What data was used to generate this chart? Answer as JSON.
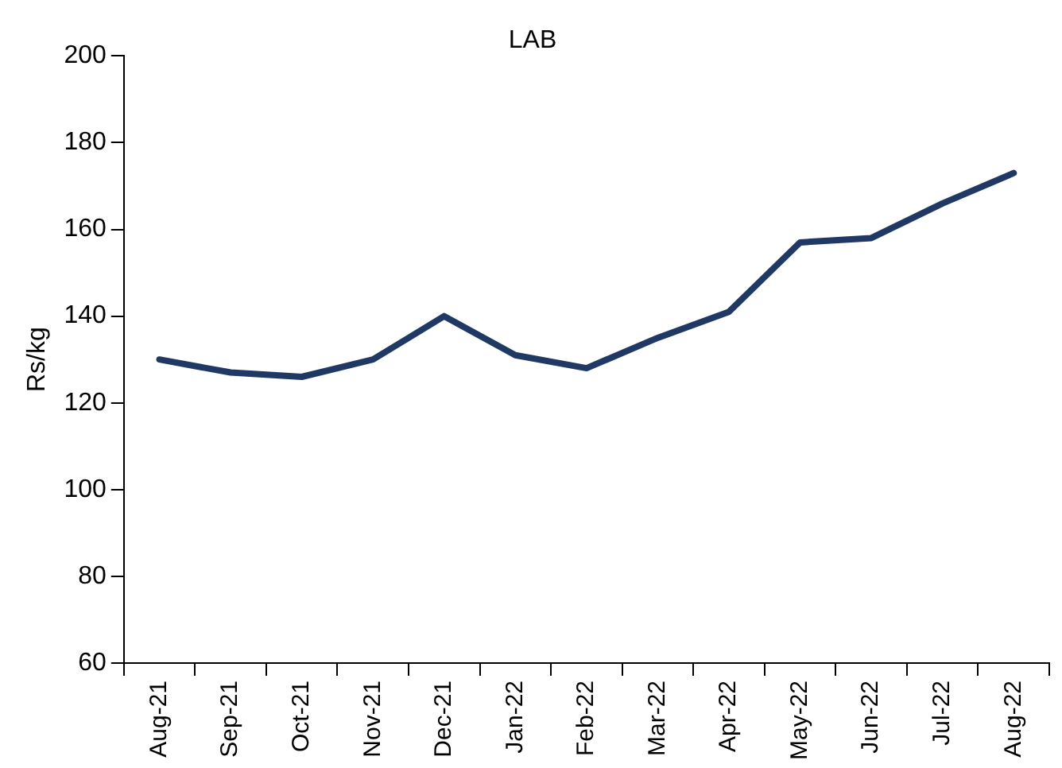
{
  "chart_data": {
    "type": "line",
    "title": "LAB",
    "ylabel": "Rs/kg",
    "categories": [
      "Aug-21",
      "Sep-21",
      "Oct-21",
      "Nov-21",
      "Dec-21",
      "Jan-22",
      "Feb-22",
      "Mar-22",
      "Apr-22",
      "May-22",
      "Jun-22",
      "Jul-22",
      "Aug-22"
    ],
    "series": [
      {
        "color": "#1f3864",
        "values": [
          130,
          127,
          126,
          130,
          140,
          131,
          128,
          135,
          141,
          157,
          158,
          166,
          173
        ]
      }
    ],
    "ylim": [
      60,
      200
    ],
    "yticks": [
      60,
      80,
      100,
      120,
      140,
      160,
      180,
      200
    ],
    "grid": false,
    "legend": false,
    "marker": "none",
    "line_style": "solid"
  }
}
